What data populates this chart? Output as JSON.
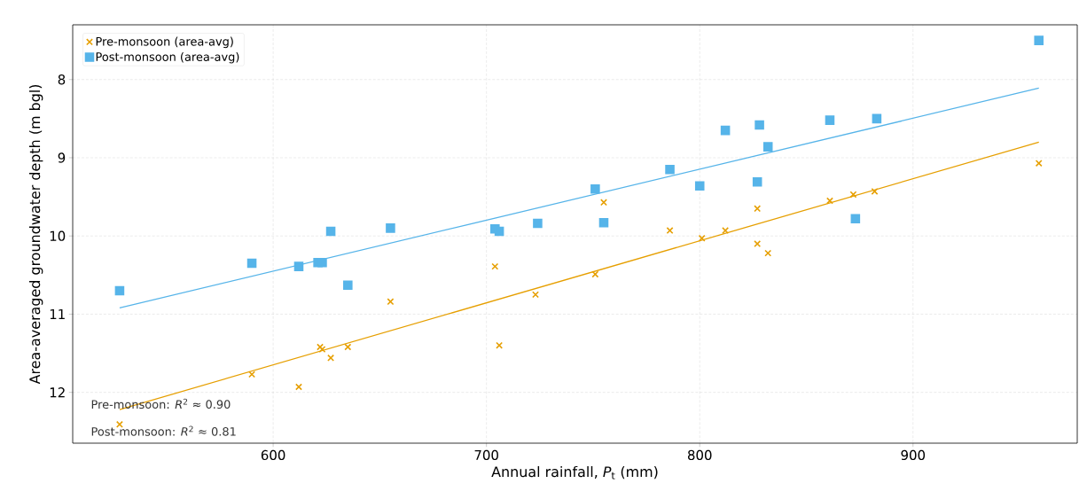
{
  "chart_data": {
    "type": "scatter",
    "xlabel": "Annual rainfall, *P*$_{t}$ (mm)",
    "ylabel": "Area-averaged groundwater depth (m bgl)",
    "xlim": [
      506,
      977
    ],
    "ylim": [
      12.65,
      7.3
    ],
    "xticks": [
      600,
      700,
      800,
      900
    ],
    "yticks": [
      8,
      9,
      10,
      11,
      12
    ],
    "grid": true,
    "legend": "top left",
    "annotations": [
      "Pre-monsoon: *R*$^{2}$ ≈ 0.90",
      "Post-monsoon: *R*$^{2}$ ≈ 0.81"
    ],
    "series": [
      {
        "name": "Pre-monsoon (area-avg)",
        "color": "#e69f00",
        "marker": "cross",
        "x": [
          528,
          590,
          612,
          622,
          623,
          627,
          635,
          655,
          704,
          706,
          723,
          751,
          755,
          786,
          801,
          812,
          827,
          827,
          832,
          861,
          872,
          882,
          959
        ],
        "values": [
          12.41,
          11.77,
          11.93,
          11.42,
          11.45,
          11.56,
          11.42,
          10.84,
          10.39,
          11.4,
          10.75,
          10.49,
          9.57,
          9.93,
          10.03,
          9.93,
          9.65,
          10.1,
          10.22,
          9.55,
          9.47,
          9.43,
          9.07
        ]
      },
      {
        "name": "Post-monsoon (area-avg)",
        "color": "#56b4e9",
        "marker": "square",
        "x": [
          528,
          590,
          612,
          621,
          623,
          627,
          635,
          655,
          704,
          706,
          724,
          751,
          755,
          786,
          800,
          812,
          827,
          828,
          832,
          861,
          873,
          883,
          959
        ],
        "values": [
          10.7,
          10.35,
          10.39,
          10.34,
          10.34,
          9.94,
          10.63,
          9.9,
          9.91,
          9.94,
          9.84,
          9.4,
          9.83,
          9.15,
          9.36,
          8.65,
          9.31,
          8.58,
          8.86,
          8.52,
          9.78,
          8.5,
          7.5
        ]
      },
      {
        "type": "line",
        "color": "#e69f00",
        "marker": "none",
        "line_style": "solid",
        "x": [
          528,
          959
        ],
        "values": [
          12.22,
          8.8
        ]
      },
      {
        "type": "line",
        "color": "#56b4e9",
        "marker": "none",
        "line_style": "solid",
        "x": [
          528,
          959
        ],
        "values": [
          10.92,
          8.11
        ]
      }
    ]
  }
}
